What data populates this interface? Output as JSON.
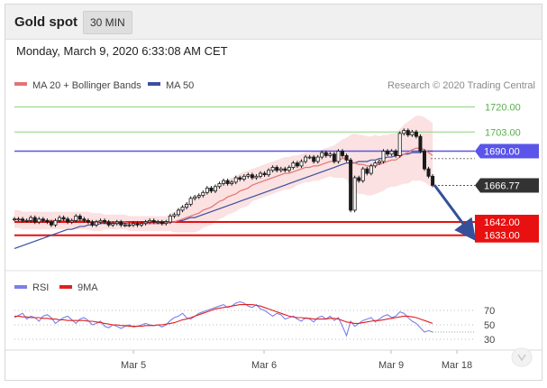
{
  "header": {
    "title": "Gold spot",
    "interval": "30 MIN"
  },
  "timestamp": "Monday, March 9, 2020 6:33:08 AM CET",
  "price_panel": {
    "legend": [
      {
        "label": "MA 20 + Bollinger Bands",
        "color": "#e57373"
      },
      {
        "label": "MA 50",
        "color": "#3b4fa0"
      }
    ],
    "credit": "Research © 2020 Trading Central"
  },
  "rsi_panel": {
    "legend": [
      {
        "label": "RSI",
        "color": "#7b7fe8"
      },
      {
        "label": "9MA",
        "color": "#e02020"
      }
    ],
    "levels": [
      "70",
      "50",
      "30"
    ]
  },
  "x_axis": {
    "labels": [
      "Mar 5",
      "Mar 6",
      "Mar 9",
      "Mar 18"
    ]
  },
  "chart_data": [
    {
      "type": "candlestick",
      "title": "Gold spot",
      "ylim": [
        1620,
        1727
      ],
      "horizontal_lines": [
        {
          "value": 1720.0,
          "label": "1720.00",
          "color": "#8cd47e",
          "kind": "line"
        },
        {
          "value": 1703.0,
          "label": "1703.00",
          "color": "#8cd47e",
          "kind": "line"
        },
        {
          "value": 1690.0,
          "label": "1690.00",
          "color": "#5a55e8",
          "kind": "resistance"
        },
        {
          "value": 1666.77,
          "label": "1666.77",
          "color": "#333333",
          "kind": "last_price"
        },
        {
          "value": 1642.0,
          "label": "1642.00",
          "color": "#e81010",
          "kind": "support"
        },
        {
          "value": 1633.0,
          "label": "1633.00",
          "color": "#e81010",
          "kind": "support"
        }
      ],
      "series_close": [
        1644,
        1644,
        1643,
        1643,
        1645,
        1642,
        1644,
        1643,
        1642,
        1640,
        1643,
        1645,
        1644,
        1642,
        1643,
        1646,
        1644,
        1643,
        1642,
        1640,
        1642,
        1643,
        1642,
        1640,
        1641,
        1642,
        1640,
        1640,
        1640,
        1641,
        1640,
        1641,
        1642,
        1643,
        1642,
        1642,
        1641,
        1642,
        1646,
        1647,
        1650,
        1652,
        1654,
        1658,
        1659,
        1660,
        1662,
        1665,
        1663,
        1666,
        1668,
        1670,
        1668,
        1669,
        1672,
        1671,
        1673,
        1674,
        1672,
        1673,
        1675,
        1674,
        1677,
        1679,
        1677,
        1678,
        1677,
        1679,
        1682,
        1680,
        1683,
        1686,
        1686,
        1683,
        1686,
        1689,
        1687,
        1688,
        1683,
        1690,
        1687,
        1684,
        1650,
        1672,
        1670,
        1678,
        1675,
        1680,
        1682,
        1683,
        1690,
        1688,
        1690,
        1687,
        1702,
        1704,
        1701,
        1703,
        1700,
        1690,
        1678,
        1673,
        1667
      ],
      "ma20": [
        1644,
        1644,
        1643,
        1643,
        1643,
        1643,
        1643,
        1643,
        1643,
        1643,
        1643,
        1643,
        1643,
        1643,
        1643,
        1643,
        1643,
        1643,
        1643,
        1642,
        1642,
        1642,
        1642,
        1642,
        1642,
        1642,
        1642,
        1642,
        1641,
        1641,
        1641,
        1641,
        1641,
        1641,
        1641,
        1641,
        1641,
        1641,
        1642,
        1642,
        1643,
        1644,
        1645,
        1646,
        1647,
        1648,
        1650,
        1651,
        1652,
        1654,
        1656,
        1657,
        1659,
        1660,
        1661,
        1663,
        1664,
        1665,
        1667,
        1668,
        1669,
        1670,
        1671,
        1672,
        1673,
        1674,
        1675,
        1675,
        1676,
        1677,
        1678,
        1679,
        1679,
        1680,
        1680,
        1681,
        1682,
        1683,
        1683,
        1684,
        1685,
        1685,
        1683,
        1682,
        1681,
        1681,
        1680,
        1680,
        1681,
        1681,
        1682,
        1683,
        1684,
        1684,
        1686,
        1688,
        1689,
        1691,
        1692,
        1692,
        1691,
        1689,
        1687
      ],
      "ma50": [
        1624,
        1625,
        1626,
        1627,
        1628,
        1629,
        1630,
        1631,
        1632,
        1633,
        1634,
        1635,
        1636,
        1637,
        1637,
        1638,
        1639,
        1639,
        1640,
        1640,
        1640,
        1641,
        1641,
        1641,
        1641,
        1641,
        1641,
        1641,
        1641,
        1641,
        1641,
        1641,
        1641,
        1641,
        1641,
        1641,
        1641,
        1641,
        1642,
        1642,
        1643,
        1643,
        1644,
        1645,
        1645,
        1646,
        1647,
        1648,
        1649,
        1650,
        1651,
        1652,
        1653,
        1654,
        1655,
        1656,
        1657,
        1658,
        1659,
        1660,
        1661,
        1662,
        1663,
        1664,
        1665,
        1666,
        1667,
        1668,
        1669,
        1670,
        1671,
        1672,
        1673,
        1674,
        1675,
        1676,
        1677,
        1678,
        1679,
        1680,
        1681,
        1682,
        1682,
        1682,
        1683,
        1683,
        1683,
        1684,
        1684,
        1685,
        1685,
        1686,
        1686,
        1687,
        1687,
        1688,
        1688,
        1689,
        1689,
        1689,
        1690,
        1690,
        1690
      ],
      "bb_width": [
        6,
        6,
        6,
        6,
        6,
        6,
        6,
        6,
        6,
        6,
        6,
        6,
        6,
        6,
        6,
        6,
        6,
        6,
        6,
        6,
        6,
        6,
        5,
        5,
        5,
        5,
        5,
        5,
        5,
        5,
        5,
        5,
        5,
        5,
        5,
        5,
        5,
        5,
        6,
        7,
        8,
        9,
        10,
        11,
        12,
        12,
        12,
        12,
        12,
        12,
        12,
        12,
        12,
        12,
        12,
        12,
        12,
        12,
        11,
        11,
        11,
        11,
        11,
        11,
        11,
        11,
        11,
        11,
        11,
        10,
        10,
        10,
        10,
        10,
        10,
        10,
        10,
        10,
        11,
        12,
        13,
        14,
        18,
        20,
        20,
        20,
        20,
        20,
        20,
        19,
        19,
        18,
        18,
        18,
        19,
        20,
        21,
        21,
        22,
        22,
        22,
        22,
        22
      ],
      "xlabels": [
        "Mar 5",
        "Mar 6",
        "Mar 9",
        "Mar 18"
      ]
    },
    {
      "type": "line",
      "title": "RSI",
      "ylim": [
        20,
        90
      ],
      "levels": [
        70,
        50,
        30
      ],
      "series": [
        {
          "name": "RSI",
          "color": "#7b7fe8",
          "values": [
            60,
            63,
            66,
            58,
            62,
            60,
            55,
            62,
            64,
            60,
            52,
            56,
            60,
            62,
            57,
            52,
            58,
            60,
            56,
            50,
            52,
            55,
            48,
            46,
            50,
            48,
            45,
            48,
            50,
            47,
            48,
            50,
            52,
            50,
            49,
            50,
            47,
            50,
            56,
            60,
            62,
            66,
            60,
            58,
            62,
            66,
            68,
            70,
            72,
            74,
            76,
            78,
            74,
            76,
            80,
            82,
            80,
            76,
            74,
            78,
            72,
            70,
            66,
            62,
            66,
            64,
            58,
            60,
            62,
            58,
            55,
            60,
            58,
            54,
            60,
            62,
            58,
            62,
            56,
            60,
            48,
            35,
            55,
            48,
            52,
            56,
            58,
            60,
            54,
            58,
            62,
            64,
            60,
            62,
            68,
            66,
            60,
            55,
            52,
            46,
            40,
            42,
            40
          ]
        },
        {
          "name": "9MA",
          "color": "#e02020",
          "values": [
            62,
            62,
            61,
            61,
            60,
            60,
            60,
            59,
            59,
            58,
            58,
            57,
            57,
            56,
            56,
            56,
            56,
            56,
            55,
            55,
            54,
            53,
            52,
            51,
            50,
            50,
            49,
            49,
            48,
            48,
            48,
            48,
            49,
            49,
            49,
            50,
            50,
            51,
            52,
            53,
            55,
            57,
            58,
            60,
            62,
            64,
            66,
            68,
            70,
            72,
            73,
            74,
            75,
            76,
            77,
            78,
            78,
            78,
            78,
            77,
            76,
            74,
            72,
            70,
            68,
            66,
            64,
            62,
            61,
            60,
            60,
            59,
            59,
            58,
            58,
            58,
            58,
            59,
            59,
            58,
            56,
            54,
            53,
            52,
            52,
            53,
            54,
            55,
            56,
            56,
            57,
            58,
            59,
            60,
            61,
            62,
            62,
            61,
            60,
            58,
            56,
            54,
            52
          ]
        }
      ],
      "xlabels": [
        "Mar 5",
        "Mar 6",
        "Mar 9",
        "Mar 18"
      ]
    }
  ]
}
